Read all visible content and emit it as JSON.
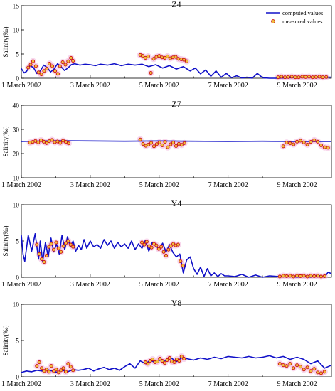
{
  "legend": {
    "computed_label": "computed values",
    "measured_label": "measured values",
    "placement": "top-right"
  },
  "colors": {
    "computed": "#1010c8",
    "measured_edge": "#c81010",
    "measured_fill": "#f0c040",
    "measured_halo": "#f2b6dc",
    "axis": "#000000"
  },
  "chart_data": [
    {
      "type": "line",
      "title": "Z4",
      "ylabel": "Salinity(‰)",
      "xlabel": "",
      "xlim": [
        1,
        10
      ],
      "ylim": [
        0,
        15
      ],
      "yticks": [
        0,
        5,
        10,
        15
      ],
      "xticks": [
        1,
        3,
        5,
        7,
        9
      ],
      "xtick_labels": [
        "1 March 2002",
        "3 March 2002",
        "5 March 2002",
        "7 March 2002",
        "9 March 2002"
      ],
      "show_legend": true,
      "series": [
        {
          "name": "computed values",
          "kind": "line",
          "x": [
            1.0,
            1.08,
            1.15,
            1.25,
            1.35,
            1.45,
            1.55,
            1.65,
            1.75,
            1.85,
            1.95,
            2.05,
            2.15,
            2.25,
            2.35,
            2.45,
            2.55,
            2.7,
            2.85,
            3.0,
            3.15,
            3.3,
            3.5,
            3.7,
            3.9,
            4.1,
            4.3,
            4.5,
            4.7,
            4.9,
            5.1,
            5.3,
            5.5,
            5.7,
            5.9,
            6.05,
            6.2,
            6.35,
            6.5,
            6.65,
            6.8,
            6.95,
            7.1,
            7.25,
            7.4,
            7.55,
            7.7,
            7.85,
            8.0,
            8.2,
            8.4,
            8.6,
            8.8,
            9.0,
            9.3,
            9.6,
            9.9,
            10.0
          ],
          "y": [
            2.0,
            1.1,
            1.4,
            2.6,
            2.2,
            1.0,
            1.5,
            2.7,
            2.2,
            1.3,
            1.9,
            3.0,
            2.4,
            1.6,
            2.1,
            2.8,
            3.0,
            2.7,
            2.9,
            2.8,
            2.6,
            2.9,
            2.7,
            3.0,
            2.6,
            2.9,
            2.7,
            2.9,
            2.4,
            2.8,
            2.1,
            2.6,
            1.9,
            2.4,
            1.5,
            2.1,
            0.9,
            1.7,
            0.4,
            1.5,
            0.2,
            1.0,
            0.1,
            0.5,
            0.05,
            0.2,
            0.0,
            1.0,
            0.1,
            0.0,
            0.0,
            0.05,
            0.1,
            0.2,
            0.25,
            0.2,
            0.2,
            0.2
          ]
        },
        {
          "name": "measured values",
          "kind": "scatter",
          "x": [
            1.2,
            1.27,
            1.34,
            1.42,
            1.5,
            1.58,
            1.66,
            1.74,
            1.82,
            1.9,
            1.98,
            2.06,
            2.12,
            2.2,
            2.28,
            2.36,
            2.44,
            2.5,
            4.45,
            4.52,
            4.6,
            4.68,
            4.76,
            4.84,
            4.92,
            5.0,
            5.08,
            5.16,
            5.24,
            5.32,
            5.4,
            5.48,
            5.56,
            5.64,
            5.72,
            5.8,
            8.45,
            8.55,
            8.65,
            8.75,
            8.85,
            8.95,
            9.05,
            9.15,
            9.25,
            9.35,
            9.45,
            9.55,
            9.65,
            9.75,
            9.85
          ],
          "y": [
            2.2,
            2.8,
            3.5,
            2.5,
            1.2,
            0.8,
            1.5,
            2.0,
            3.0,
            2.5,
            1.5,
            0.9,
            2.5,
            3.3,
            2.8,
            3.5,
            4.2,
            3.6,
            4.8,
            4.6,
            4.2,
            4.5,
            1.1,
            4.0,
            4.4,
            4.6,
            4.3,
            4.2,
            4.5,
            4.1,
            4.3,
            4.4,
            4.0,
            3.9,
            3.8,
            3.5,
            0.2,
            0.3,
            0.2,
            0.25,
            0.3,
            0.2,
            0.2,
            0.3,
            0.25,
            0.3,
            0.2,
            0.25,
            0.3,
            0.2,
            0.25
          ]
        }
      ]
    },
    {
      "type": "line",
      "title": "Z7",
      "ylabel": "Salinity(‰)",
      "xlabel": "",
      "xlim": [
        1,
        10
      ],
      "ylim": [
        10,
        40
      ],
      "yticks": [
        10,
        20,
        30,
        40
      ],
      "xticks": [
        1,
        3,
        5,
        7,
        9
      ],
      "xtick_labels": [
        "1 March 2002",
        "3 March 2002",
        "5 March 2002",
        "7 March 2002",
        "9 March 2002"
      ],
      "show_legend": false,
      "series": [
        {
          "name": "computed values",
          "kind": "line",
          "x": [
            1.0,
            2.0,
            3.0,
            4.0,
            5.0,
            6.0,
            7.0,
            8.0,
            9.0,
            10.0
          ],
          "y": [
            25.0,
            25.3,
            25.2,
            25.1,
            25.2,
            25.1,
            25.0,
            25.1,
            25.0,
            25.0
          ]
        },
        {
          "name": "measured values",
          "kind": "scatter",
          "x": [
            1.25,
            1.33,
            1.41,
            1.49,
            1.57,
            1.65,
            1.73,
            1.81,
            1.89,
            1.97,
            2.05,
            2.13,
            2.21,
            2.29,
            2.37,
            4.45,
            4.53,
            4.61,
            4.69,
            4.77,
            4.85,
            4.93,
            5.01,
            5.09,
            5.17,
            5.25,
            5.33,
            5.41,
            5.49,
            5.57,
            5.65,
            5.73,
            8.6,
            8.7,
            8.8,
            8.9,
            9.0,
            9.1,
            9.2,
            9.3,
            9.4,
            9.5,
            9.6,
            9.7,
            9.8,
            9.9
          ],
          "y": [
            24.5,
            24.8,
            25.2,
            24.6,
            25.5,
            24.9,
            24.3,
            25.1,
            25.6,
            24.7,
            25.0,
            24.4,
            25.3,
            24.8,
            24.2,
            25.8,
            24.0,
            23.2,
            23.7,
            24.4,
            23.0,
            23.9,
            24.6,
            23.4,
            24.8,
            22.6,
            23.8,
            24.5,
            23.1,
            24.0,
            23.6,
            24.3,
            23.0,
            24.5,
            24.2,
            23.8,
            24.9,
            25.3,
            24.6,
            23.7,
            24.8,
            25.5,
            24.9,
            23.4,
            22.6,
            22.4
          ]
        }
      ]
    },
    {
      "type": "line",
      "title": "Y4",
      "ylabel": "Salinity(‰)",
      "xlabel": "",
      "xlim": [
        1,
        10
      ],
      "ylim": [
        0,
        10
      ],
      "yticks": [
        0,
        5,
        10
      ],
      "xticks": [
        1,
        3,
        5,
        7,
        9
      ],
      "xtick_labels": [
        "1 March 2002",
        "3 March 2002",
        "5 March 2002",
        "7 March 2002",
        "9 March 2002"
      ],
      "show_legend": false,
      "series": [
        {
          "name": "computed values",
          "kind": "line",
          "x": [
            1.0,
            1.05,
            1.1,
            1.2,
            1.3,
            1.4,
            1.5,
            1.55,
            1.62,
            1.7,
            1.78,
            1.86,
            1.94,
            2.02,
            2.1,
            2.18,
            2.26,
            2.34,
            2.42,
            2.5,
            2.58,
            2.66,
            2.74,
            2.82,
            2.9,
            3.0,
            3.1,
            3.2,
            3.3,
            3.4,
            3.5,
            3.6,
            3.7,
            3.8,
            3.9,
            4.0,
            4.1,
            4.2,
            4.3,
            4.4,
            4.5,
            4.6,
            4.7,
            4.8,
            4.9,
            5.0,
            5.1,
            5.2,
            5.3,
            5.4,
            5.5,
            5.6,
            5.7,
            5.8,
            5.9,
            6.0,
            6.1,
            6.2,
            6.3,
            6.4,
            6.5,
            6.6,
            6.7,
            6.8,
            6.9,
            7.0,
            7.2,
            7.4,
            7.6,
            7.8,
            8.0,
            8.2,
            8.5,
            8.8,
            9.0,
            9.2,
            9.4,
            9.6,
            9.8,
            9.9,
            10.0
          ],
          "y": [
            5.8,
            3.2,
            2.2,
            5.8,
            3.6,
            6.0,
            2.5,
            5.0,
            2.2,
            4.8,
            2.8,
            5.4,
            3.5,
            4.6,
            3.2,
            5.8,
            3.8,
            5.6,
            4.2,
            5.0,
            3.6,
            4.4,
            3.8,
            5.2,
            4.0,
            5.0,
            4.2,
            4.5,
            4.0,
            5.2,
            4.4,
            5.0,
            4.0,
            4.8,
            4.2,
            4.6,
            4.0,
            5.0,
            3.8,
            4.6,
            4.0,
            5.1,
            3.6,
            4.8,
            4.4,
            3.8,
            4.7,
            3.5,
            4.5,
            3.4,
            2.8,
            3.2,
            0.6,
            2.4,
            2.8,
            1.2,
            0.4,
            1.4,
            0.1,
            1.2,
            0.2,
            0.6,
            0.1,
            0.5,
            0.2,
            0.2,
            0.1,
            0.4,
            0.0,
            0.3,
            0.0,
            0.2,
            0.1,
            0.2,
            0.0,
            0.2,
            0.0,
            0.3,
            0.0,
            0.7,
            0.5
          ]
        },
        {
          "name": "measured values",
          "kind": "scatter",
          "x": [
            1.45,
            1.52,
            1.59,
            1.66,
            1.73,
            1.8,
            1.87,
            1.94,
            2.01,
            2.08,
            2.15,
            2.22,
            2.29,
            2.36,
            2.43,
            2.5,
            4.5,
            4.57,
            4.64,
            4.71,
            4.78,
            4.85,
            4.92,
            4.99,
            5.06,
            5.13,
            5.2,
            5.27,
            5.34,
            5.41,
            5.48,
            5.55,
            5.62,
            5.69,
            8.5,
            8.6,
            8.7,
            8.8,
            8.9,
            9.0,
            9.1,
            9.2,
            9.3,
            9.4,
            9.5,
            9.6,
            9.7,
            9.8
          ],
          "y": [
            4.5,
            3.2,
            2.5,
            2.1,
            3.0,
            4.2,
            4.6,
            3.8,
            4.8,
            4.0,
            3.5,
            4.3,
            4.7,
            5.0,
            4.5,
            4.2,
            4.8,
            4.5,
            4.9,
            4.3,
            4.1,
            4.6,
            4.4,
            3.9,
            4.2,
            3.5,
            3.0,
            3.8,
            4.3,
            4.6,
            4.4,
            4.5,
            2.2,
            1.6,
            0.1,
            0.2,
            0.15,
            0.2,
            0.1,
            0.2,
            0.15,
            0.2,
            0.1,
            0.2,
            0.15,
            0.2,
            0.1,
            0.15
          ]
        }
      ]
    },
    {
      "type": "line",
      "title": "Y8",
      "ylabel": "Salinity(‰)",
      "xlabel": "",
      "xlim": [
        1,
        10
      ],
      "ylim": [
        0,
        10
      ],
      "yticks": [
        0,
        5,
        10
      ],
      "xticks": [
        1,
        3,
        5,
        7,
        9
      ],
      "xtick_labels": [
        "1 March 2002",
        "3 March 2002",
        "5 March 2002",
        "7 March 2002",
        "9 March 2002"
      ],
      "show_legend": false,
      "series": [
        {
          "name": "computed values",
          "kind": "line",
          "x": [
            1.0,
            1.15,
            1.3,
            1.45,
            1.6,
            1.75,
            1.9,
            2.05,
            2.2,
            2.35,
            2.5,
            2.65,
            2.8,
            2.95,
            3.1,
            3.25,
            3.4,
            3.55,
            3.7,
            3.85,
            4.0,
            4.15,
            4.3,
            4.45,
            4.6,
            4.75,
            4.9,
            5.05,
            5.2,
            5.35,
            5.5,
            5.65,
            5.8,
            6.0,
            6.2,
            6.4,
            6.6,
            6.8,
            7.0,
            7.2,
            7.4,
            7.6,
            7.8,
            8.0,
            8.2,
            8.4,
            8.6,
            8.8,
            9.0,
            9.2,
            9.4,
            9.6,
            9.8,
            10.0
          ],
          "y": [
            0.6,
            0.8,
            0.7,
            0.9,
            0.8,
            1.0,
            0.8,
            0.6,
            0.9,
            0.7,
            1.0,
            0.9,
            1.0,
            1.2,
            0.8,
            1.1,
            1.3,
            1.0,
            1.2,
            0.9,
            1.4,
            1.8,
            1.2,
            2.2,
            1.8,
            2.3,
            1.9,
            2.4,
            2.2,
            2.6,
            2.1,
            2.6,
            2.5,
            2.3,
            2.6,
            2.4,
            2.7,
            2.5,
            2.8,
            2.7,
            2.6,
            2.8,
            2.6,
            2.7,
            2.9,
            2.6,
            2.8,
            2.4,
            2.7,
            2.4,
            1.8,
            2.2,
            1.2,
            1.6
          ]
        },
        {
          "name": "measured values",
          "kind": "scatter",
          "x": [
            1.45,
            1.52,
            1.59,
            1.66,
            1.73,
            1.8,
            1.87,
            1.94,
            2.01,
            2.08,
            2.15,
            2.22,
            2.29,
            2.36,
            2.43,
            2.5,
            4.6,
            4.67,
            4.74,
            4.81,
            4.88,
            4.95,
            5.02,
            5.09,
            5.16,
            5.23,
            5.3,
            5.37,
            5.44,
            5.51,
            5.58,
            5.65,
            5.72,
            8.5,
            8.6,
            8.7,
            8.8,
            8.9,
            9.0,
            9.1,
            9.2,
            9.3,
            9.4,
            9.5,
            9.6,
            9.7,
            9.8
          ],
          "y": [
            1.5,
            2.0,
            1.2,
            0.8,
            1.0,
            0.7,
            1.5,
            0.8,
            1.0,
            0.6,
            0.9,
            1.2,
            0.7,
            1.8,
            1.4,
            0.9,
            2.0,
            1.8,
            2.2,
            2.4,
            2.0,
            2.1,
            2.5,
            2.2,
            1.9,
            2.3,
            2.6,
            2.1,
            2.0,
            2.4,
            2.2,
            2.8,
            2.5,
            1.8,
            1.6,
            1.5,
            1.8,
            1.2,
            1.6,
            1.4,
            1.0,
            1.3,
            0.8,
            1.1,
            0.6,
            0.5,
            0.7
          ]
        }
      ]
    }
  ]
}
